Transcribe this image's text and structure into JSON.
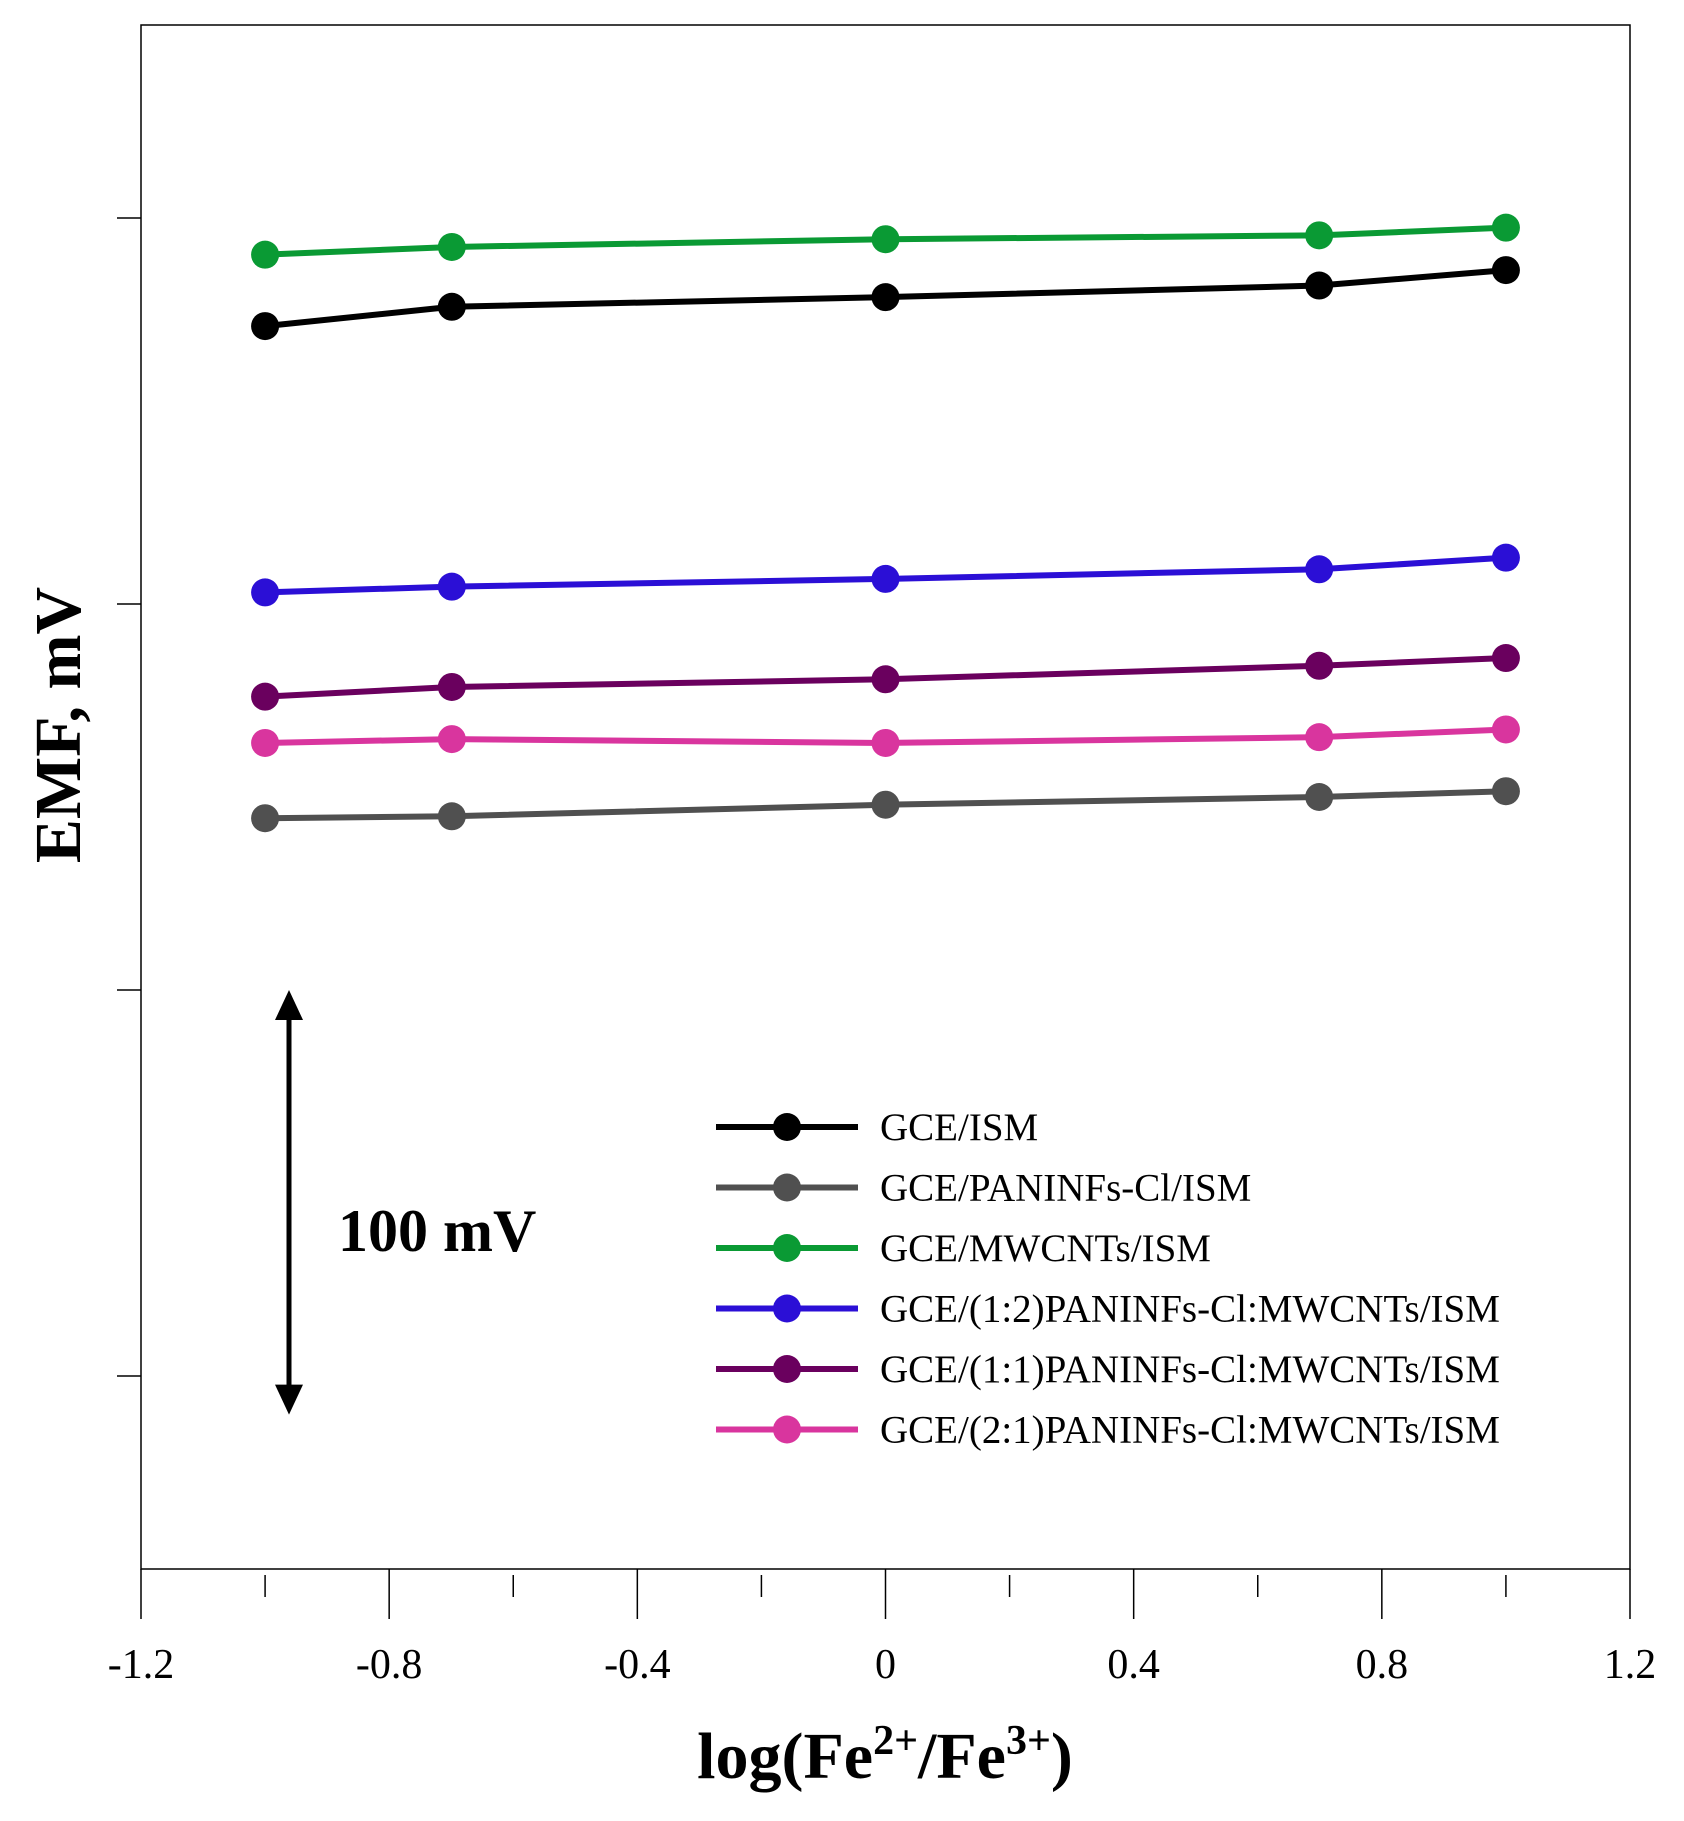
{
  "chart_data": {
    "type": "line",
    "title": "",
    "xlabel_main": "log(Fe",
    "xlabel_sup1": "2+",
    "xlabel_mid": "/Fe",
    "xlabel_sup2": "3+",
    "xlabel_end": ")",
    "ylabel": "EMF, mV",
    "xlim": [
      -1.2,
      1.2
    ],
    "ylim": [
      -300,
      500
    ],
    "x_ticks": [
      -1.2,
      -0.8,
      -0.4,
      0,
      0.4,
      0.8,
      1.2
    ],
    "x_tick_labels": [
      "-1.2",
      "-0.8",
      "-0.4",
      "0",
      "0.4",
      "0.8",
      "1.2"
    ],
    "y_ticks": [
      400,
      200,
      0,
      -200
    ],
    "grid": false,
    "legend_position": "lower-right",
    "scale_bar_label": "100 mV",
    "scale_bar_range": [
      -220,
      0
    ],
    "x": [
      -1,
      -0.699,
      0,
      0.699,
      1
    ],
    "series": [
      {
        "name": "GCE/ISM",
        "color": "#000000",
        "values": [
          344,
          354,
          359,
          365,
          373
        ]
      },
      {
        "name": "GCE/PANINFs-Cl/ISM",
        "color": "#505050",
        "values": [
          89,
          90,
          96,
          100,
          103
        ]
      },
      {
        "name": "GCE/MWCNTs/ISM",
        "color": "#0a9a34",
        "values": [
          381,
          385,
          389,
          391,
          395
        ]
      },
      {
        "name": "GCE/(1:2)PANINFs-Cl:MWCNTs/ISM",
        "color": "#2b0fd6",
        "values": [
          206,
          209,
          213,
          218,
          224
        ]
      },
      {
        "name": "GCE/(1:1)PANINFs-Cl:MWCNTs/ISM",
        "color": "#6a005e",
        "values": [
          152,
          157,
          161,
          168,
          172
        ]
      },
      {
        "name": "GCE/(2:1)PANINFs-Cl:MWCNTs/ISM",
        "color": "#d9359e",
        "values": [
          128,
          130,
          128,
          131,
          135
        ]
      }
    ]
  }
}
